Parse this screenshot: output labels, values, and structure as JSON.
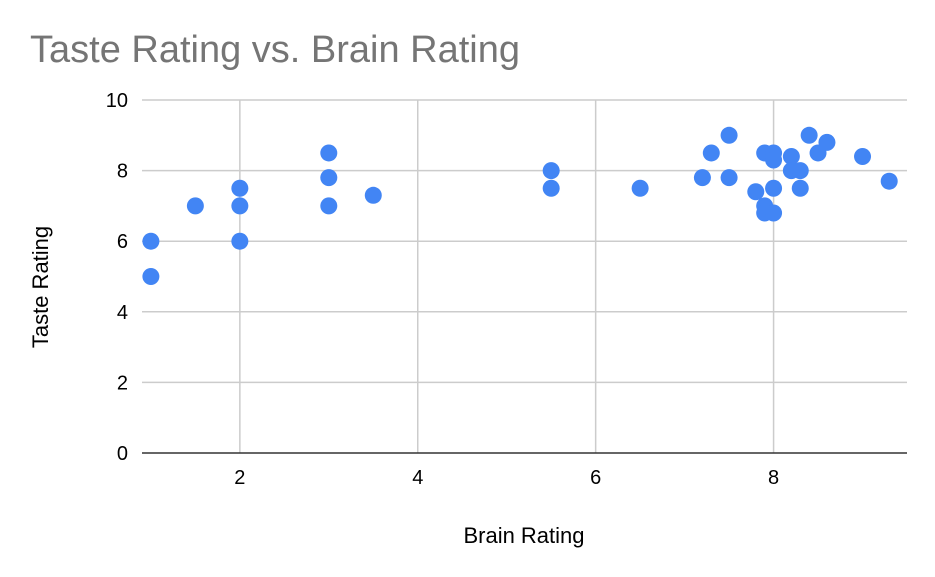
{
  "chart_data": {
    "type": "scatter",
    "title": "Taste Rating vs. Brain Rating",
    "xlabel": "Brain Rating",
    "ylabel": "Taste Rating",
    "xlim": [
      0.9,
      9.5
    ],
    "ylim": [
      0,
      10
    ],
    "xticks": [
      "2",
      "4",
      "6",
      "8"
    ],
    "yticks": [
      "0",
      "2",
      "4",
      "6",
      "8",
      "10"
    ],
    "grid": true,
    "legend": "none",
    "point_color": "#4285f4",
    "points": [
      {
        "x": 1,
        "y": 6
      },
      {
        "x": 1,
        "y": 5
      },
      {
        "x": 1.5,
        "y": 7
      },
      {
        "x": 2,
        "y": 7.5
      },
      {
        "x": 2,
        "y": 7
      },
      {
        "x": 2,
        "y": 6
      },
      {
        "x": 3,
        "y": 8.5
      },
      {
        "x": 3,
        "y": 7.8
      },
      {
        "x": 3,
        "y": 7
      },
      {
        "x": 3.5,
        "y": 7.3
      },
      {
        "x": 5.5,
        "y": 8
      },
      {
        "x": 5.5,
        "y": 7.5
      },
      {
        "x": 6.5,
        "y": 7.5
      },
      {
        "x": 7.2,
        "y": 7.8
      },
      {
        "x": 7.3,
        "y": 8.5
      },
      {
        "x": 7.5,
        "y": 9
      },
      {
        "x": 7.5,
        "y": 7.8
      },
      {
        "x": 7.8,
        "y": 7.4
      },
      {
        "x": 7.9,
        "y": 8.5
      },
      {
        "x": 7.9,
        "y": 7
      },
      {
        "x": 7.9,
        "y": 6.8
      },
      {
        "x": 8,
        "y": 8.5
      },
      {
        "x": 8,
        "y": 8.3
      },
      {
        "x": 8,
        "y": 7.5
      },
      {
        "x": 8,
        "y": 6.8
      },
      {
        "x": 8.2,
        "y": 8.4
      },
      {
        "x": 8.2,
        "y": 8
      },
      {
        "x": 8.3,
        "y": 8
      },
      {
        "x": 8.3,
        "y": 7.5
      },
      {
        "x": 8.4,
        "y": 9
      },
      {
        "x": 8.5,
        "y": 8.5
      },
      {
        "x": 8.6,
        "y": 8.8
      },
      {
        "x": 9,
        "y": 8.4
      },
      {
        "x": 9.3,
        "y": 7.7
      }
    ]
  }
}
